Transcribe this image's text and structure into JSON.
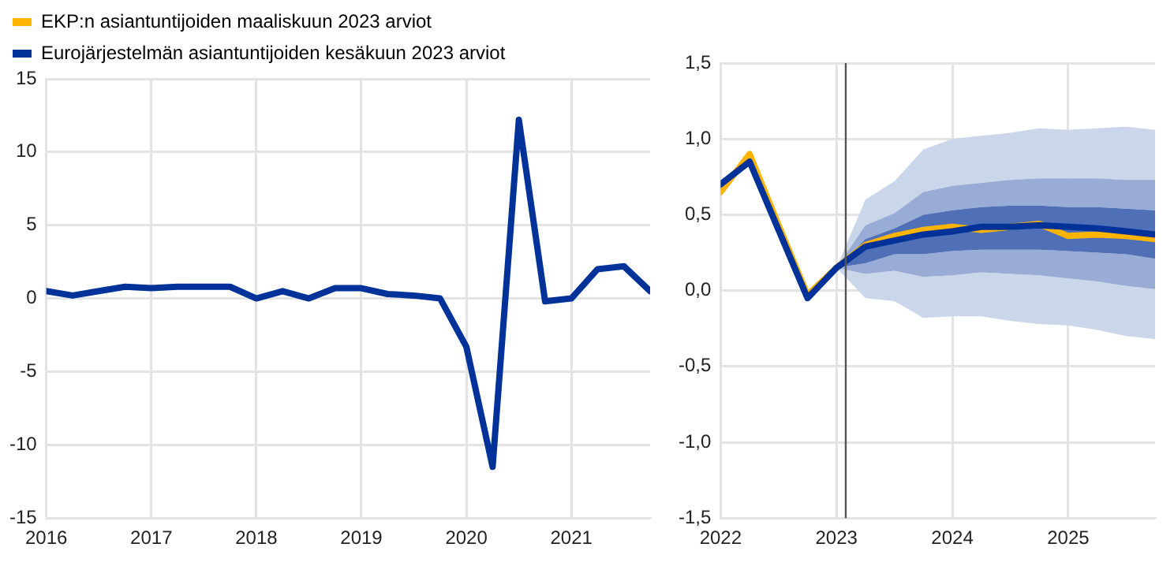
{
  "chart_data": [
    {
      "type": "line",
      "legend": "top left",
      "grid": true,
      "xlim": [
        2016,
        2021.75
      ],
      "xticks": [
        2016,
        2017,
        2018,
        2019,
        2020,
        2021
      ],
      "ylim": [
        -15,
        15
      ],
      "yticks": [
        -15,
        -10,
        -5,
        0,
        5,
        10,
        15
      ],
      "x": [
        2016,
        2016.25,
        2016.5,
        2016.75,
        2017,
        2017.25,
        2017.5,
        2017.75,
        2018,
        2018.25,
        2018.5,
        2018.75,
        2019,
        2019.25,
        2019.5,
        2019.75,
        2020,
        2020.25,
        2020.5,
        2020.75,
        2021,
        2021.25,
        2021.5,
        2021.75
      ],
      "series": [
        {
          "name": "EKP:n asiantuntijoiden maaliskuun 2023 arviot",
          "color": "#ffb400",
          "values": [
            null,
            null,
            null,
            null,
            null,
            null,
            null,
            null,
            null,
            null,
            null,
            null,
            null,
            null,
            null,
            null,
            null,
            null,
            null,
            null,
            null,
            null,
            null,
            null
          ]
        },
        {
          "name": "Eurojärjestelmän asiantuntijoiden kesäkuun 2023 arviot",
          "color": "#003299",
          "values": [
            0.5,
            0.2,
            0.5,
            0.8,
            0.7,
            0.8,
            0.8,
            0.8,
            0,
            0.5,
            0,
            0.7,
            0.7,
            0.3,
            0.2,
            0,
            -3.3,
            -11.5,
            12.2,
            -0.2,
            0,
            2,
            2.2,
            0.5
          ]
        }
      ]
    },
    {
      "type": "line",
      "grid": true,
      "xlim": [
        2022,
        2025.75
      ],
      "xticks": [
        2022,
        2023,
        2024,
        2025
      ],
      "ylim": [
        -1.5,
        1.5
      ],
      "yticks": [
        {
          "value": -1.5,
          "label": "-1,5"
        },
        {
          "value": -1,
          "label": "-1,0"
        },
        {
          "value": -0.5,
          "label": "-0,5"
        },
        {
          "value": 0,
          "label": "0,0"
        },
        {
          "value": 0.5,
          "label": "0,5"
        },
        {
          "value": 1,
          "label": "1,0"
        },
        {
          "value": 1.5,
          "label": "1,5"
        }
      ],
      "ref_lines": [
        {
          "axis": "x",
          "value": 2023.08,
          "color": "#555555"
        }
      ],
      "series": [
        {
          "type": "line",
          "color": "#cad6ea",
          "x": [
            2023,
            2023.25,
            2023.5,
            2023.75,
            2024,
            2024.25,
            2024.5,
            2024.75,
            2025,
            2025.25,
            2025.5,
            2025.75
          ],
          "values": [
            null,
            null,
            null,
            null,
            null,
            null,
            null,
            null,
            null,
            null,
            null,
            null
          ],
          "lower": [
            0.15,
            -0.05,
            -0.07,
            -0.18,
            -0.17,
            -0.17,
            -0.2,
            -0.22,
            -0.23,
            -0.26,
            -0.3,
            -0.32
          ],
          "upper": [
            0.15,
            0.6,
            0.72,
            0.93,
            1.0,
            1.02,
            1.04,
            1.07,
            1.06,
            1.07,
            1.08,
            1.06
          ]
        },
        {
          "type": "line",
          "color": "#98acd5",
          "x": [
            2023,
            2023.25,
            2023.5,
            2023.75,
            2024,
            2024.25,
            2024.5,
            2024.75,
            2025,
            2025.25,
            2025.5,
            2025.75
          ],
          "values": [
            null,
            null,
            null,
            null,
            null,
            null,
            null,
            null,
            null,
            null,
            null,
            null
          ],
          "lower": [
            0.15,
            0.11,
            0.13,
            0.09,
            0.1,
            0.12,
            0.11,
            0.1,
            0.08,
            0.06,
            0.03,
            0.01
          ],
          "upper": [
            0.15,
            0.43,
            0.51,
            0.65,
            0.69,
            0.71,
            0.73,
            0.74,
            0.74,
            0.74,
            0.73,
            0.73
          ]
        },
        {
          "type": "line",
          "color": "#4f6fb6",
          "x": [
            2023,
            2023.25,
            2023.5,
            2023.75,
            2024,
            2024.25,
            2024.5,
            2024.75,
            2025,
            2025.25,
            2025.5,
            2025.75
          ],
          "values": [
            null,
            null,
            null,
            null,
            null,
            null,
            null,
            null,
            null,
            null,
            null,
            null
          ],
          "lower": [
            0.15,
            0.18,
            0.24,
            0.24,
            0.26,
            0.27,
            0.27,
            0.27,
            0.26,
            0.25,
            0.24,
            0.21
          ],
          "upper": [
            0.15,
            0.34,
            0.41,
            0.5,
            0.53,
            0.55,
            0.56,
            0.56,
            0.55,
            0.55,
            0.54,
            0.53
          ]
        },
        {
          "type": "line",
          "color": "#ffb400",
          "x": [
            2022,
            2022.25,
            2022.5,
            2022.75,
            2023,
            2023.25,
            2023.5,
            2023.75,
            2024,
            2024.25,
            2024.5,
            2024.75,
            2025,
            2025.25,
            2025.5,
            2025.75
          ],
          "values": [
            0.65,
            0.9,
            0.43,
            -0.03,
            0.15,
            0.3,
            0.36,
            0.4,
            0.42,
            0.4,
            0.42,
            0.44,
            0.36,
            0.37,
            0.36,
            0.34
          ]
        },
        {
          "type": "line",
          "color": "#003299",
          "x": [
            2022,
            2022.25,
            2022.5,
            2022.75,
            2023,
            2023.25,
            2023.5,
            2023.75,
            2024,
            2024.25,
            2024.5,
            2024.75,
            2025,
            2025.25,
            2025.5,
            2025.75
          ],
          "values": [
            0.7,
            0.85,
            0.4,
            -0.05,
            0.15,
            0.29,
            0.33,
            0.37,
            0.39,
            0.42,
            0.42,
            0.43,
            0.42,
            0.41,
            0.39,
            0.37
          ]
        }
      ]
    }
  ]
}
